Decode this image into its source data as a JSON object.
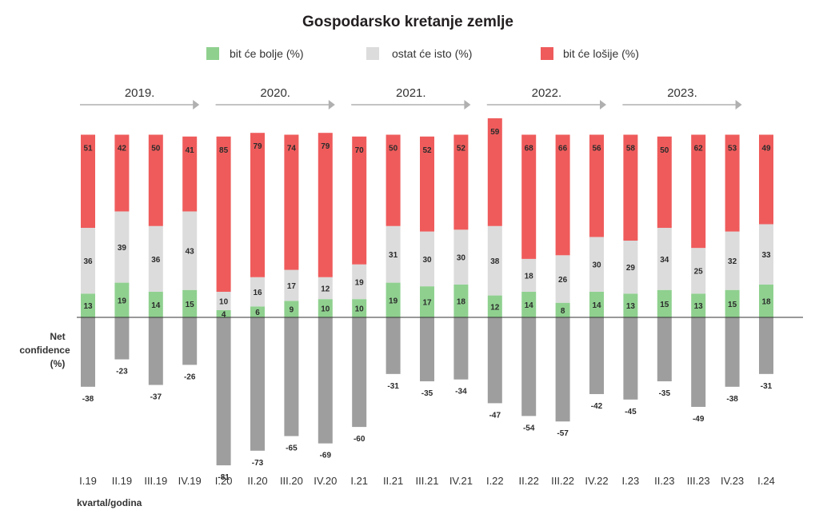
{
  "chart_data": {
    "type": "bar",
    "title": "Gospodarsko kretanje zemlje",
    "xlabel": "kvartal/godina",
    "ylabel": "Net confidence (%)",
    "legend_position": "top",
    "colors": {
      "better": "#8fd08f",
      "same": "#dcdcdc",
      "worse": "#ef5b5b",
      "net": "#9e9e9e",
      "axis": "#333333",
      "arrow": "#b0b0b0"
    },
    "legend": [
      {
        "key": "better",
        "label": "bit će bolje (%)"
      },
      {
        "key": "same",
        "label": "ostat će isto (%)"
      },
      {
        "key": "worse",
        "label": "bit će lošije (%)"
      }
    ],
    "years": [
      "2019.",
      "2020.",
      "2021.",
      "2022.",
      "2023."
    ],
    "categories": [
      "I.19",
      "II.19",
      "III.19",
      "IV.19",
      "I.20",
      "II.20",
      "III.20",
      "IV.20",
      "I.21",
      "II.21",
      "III.21",
      "IV.21",
      "I.22",
      "II.22",
      "III.22",
      "IV.22",
      "I.23",
      "II.23",
      "III.23",
      "IV.23",
      "I.24"
    ],
    "series": [
      {
        "name": "bit će bolje (%)",
        "key": "better",
        "values": [
          13,
          19,
          14,
          15,
          4,
          6,
          9,
          10,
          10,
          19,
          17,
          18,
          12,
          14,
          8,
          14,
          13,
          15,
          13,
          15,
          18
        ]
      },
      {
        "name": "ostat će isto (%)",
        "key": "same",
        "values": [
          36,
          39,
          36,
          43,
          10,
          16,
          17,
          12,
          19,
          31,
          30,
          30,
          38,
          18,
          26,
          30,
          29,
          34,
          25,
          32,
          33
        ]
      },
      {
        "name": "bit će lošije (%)",
        "key": "worse",
        "values": [
          51,
          42,
          50,
          41,
          85,
          79,
          74,
          79,
          70,
          50,
          52,
          52,
          59,
          68,
          66,
          56,
          58,
          50,
          62,
          53,
          49
        ]
      }
    ],
    "net_confidence": [
      -38,
      -23,
      -37,
      -26,
      -81,
      -73,
      -65,
      -69,
      -60,
      -31,
      -35,
      -34,
      -47,
      -54,
      -57,
      -42,
      -45,
      -35,
      -49,
      -38,
      -31
    ]
  }
}
